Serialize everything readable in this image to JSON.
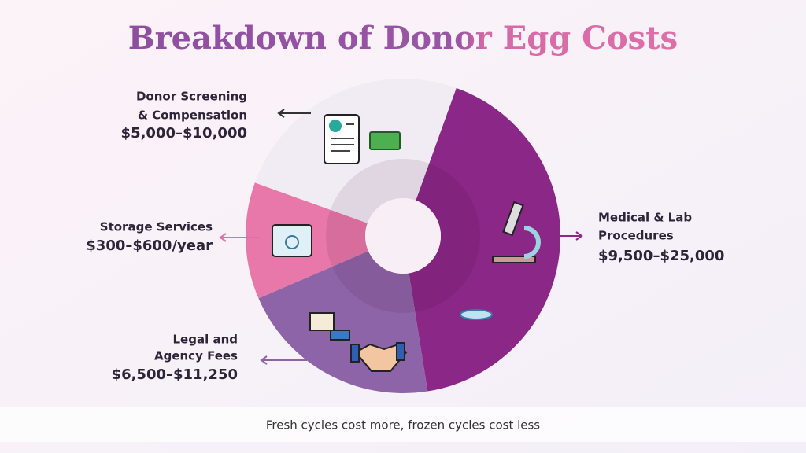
{
  "chart_data": {
    "type": "pie",
    "title": "Breakdown of Donor Egg Costs",
    "categories": [
      [
        "Medical & Lab",
        "Procedures"
      ],
      [
        "Legal and",
        "Agency Fees"
      ],
      [
        "Storage Services"
      ],
      [
        "Donor Screening",
        "& Compensation"
      ]
    ],
    "range_labels": [
      "$9,500–$25,000",
      "$6,500–$11,250",
      "$300–$600/year",
      "$5,000–$10,000"
    ],
    "values": [
      42,
      21,
      12,
      25
    ],
    "colors": [
      "#8b2787",
      "#8e64a8",
      "#e878a9",
      "#f1ecf3"
    ],
    "footnote": "Fresh cycles cost more, frozen cycles cost less"
  }
}
